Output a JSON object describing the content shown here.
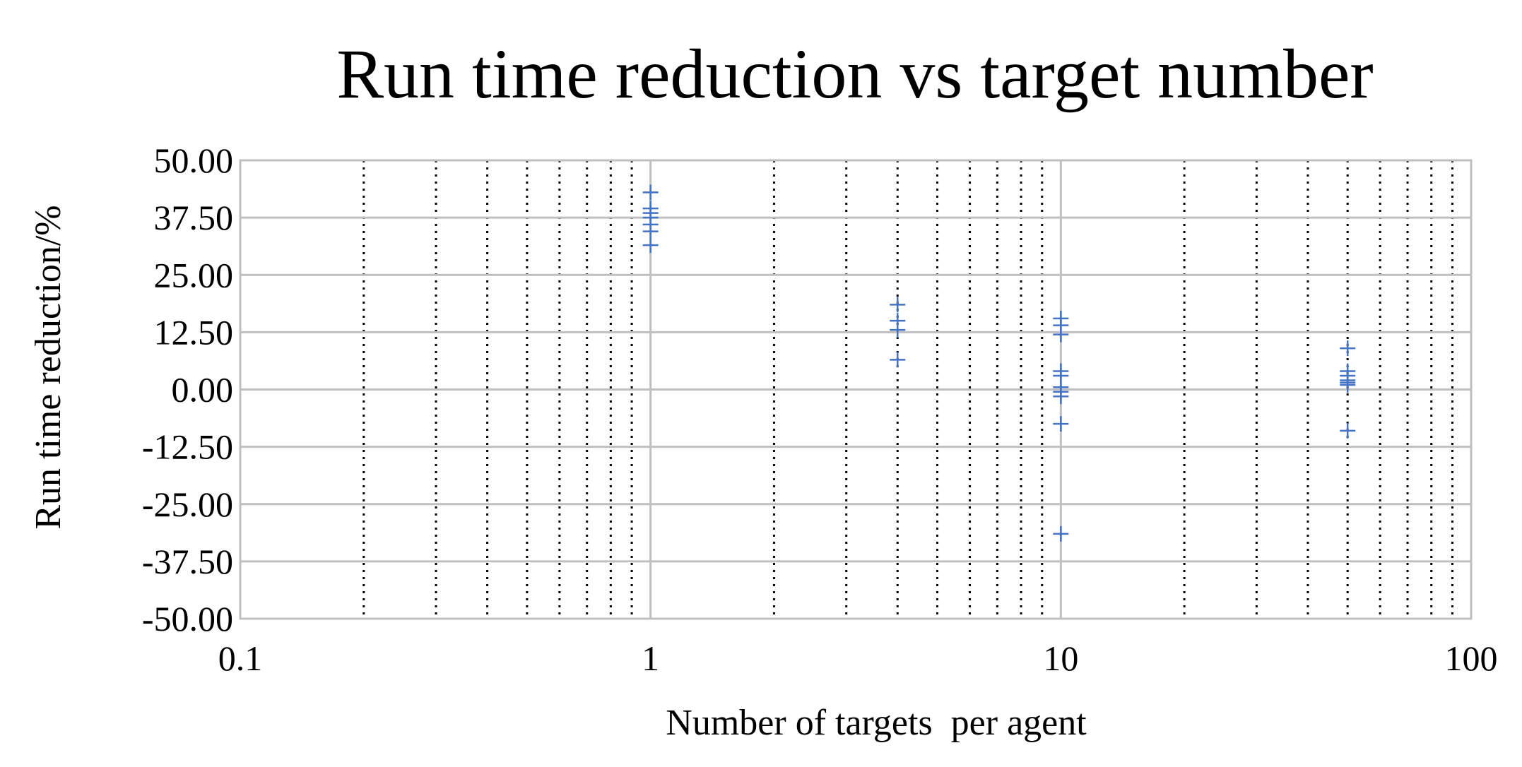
{
  "chart_data": {
    "type": "scatter",
    "title": "Run time reduction vs target number",
    "xlabel": "Number of targets  per agent",
    "ylabel": "Run time reduction/%",
    "x_scale": "log",
    "xlim": [
      0.1,
      100
    ],
    "ylim": [
      -50,
      50
    ],
    "x_ticks": [
      "0.1",
      "1",
      "10",
      "100"
    ],
    "y_ticks": [
      "50.00",
      "37.50",
      "25.00",
      "12.50",
      "0.00",
      "-12.50",
      "-25.00",
      "-37.50",
      "-50.00"
    ],
    "grid": {
      "major": true,
      "minor_x": true
    },
    "legend": "none",
    "marker": "plus",
    "colors": {
      "marker": "#4472c4",
      "grid": "#bfbfbf",
      "minor_grid": "#000000",
      "axis": "#bfbfbf"
    },
    "series": [
      {
        "points": [
          {
            "x": 1,
            "y": 43
          },
          {
            "x": 1,
            "y": 39.5
          },
          {
            "x": 1,
            "y": 38.5
          },
          {
            "x": 1,
            "y": 37.5
          },
          {
            "x": 1,
            "y": 36
          },
          {
            "x": 1,
            "y": 34.5
          },
          {
            "x": 1,
            "y": 31.5
          },
          {
            "x": 4,
            "y": 18.5
          },
          {
            "x": 4,
            "y": 15
          },
          {
            "x": 4,
            "y": 13
          },
          {
            "x": 4,
            "y": 6.5
          },
          {
            "x": 10,
            "y": 15.5
          },
          {
            "x": 10,
            "y": 14
          },
          {
            "x": 10,
            "y": 12
          },
          {
            "x": 10,
            "y": 4
          },
          {
            "x": 10,
            "y": 3
          },
          {
            "x": 10,
            "y": 0.5
          },
          {
            "x": 10,
            "y": -0.5
          },
          {
            "x": 10,
            "y": -1.5
          },
          {
            "x": 10,
            "y": -7.5
          },
          {
            "x": 10,
            "y": -31.5
          },
          {
            "x": 50,
            "y": 9
          },
          {
            "x": 50,
            "y": 4
          },
          {
            "x": 50,
            "y": 3
          },
          {
            "x": 50,
            "y": 2
          },
          {
            "x": 50,
            "y": 1.5
          },
          {
            "x": 50,
            "y": 1
          },
          {
            "x": 50,
            "y": -9
          }
        ]
      }
    ]
  }
}
